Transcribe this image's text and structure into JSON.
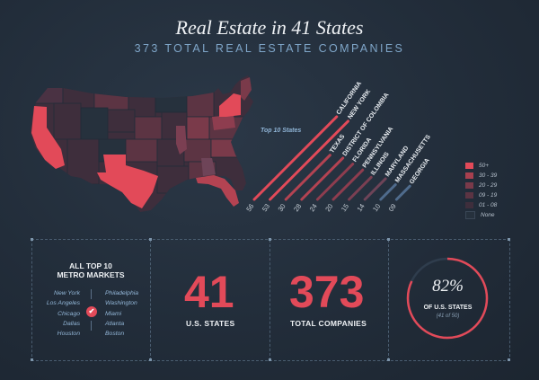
{
  "header": {
    "title": "Real Estate in 41 States",
    "subtitle": "373 TOTAL REAL ESTATE COMPANIES"
  },
  "colors": {
    "accent": "#e24a59",
    "tier_50_plus": "#e24a59",
    "tier_30_39": "#a8404f",
    "tier_20_29": "#7a3a4a",
    "tier_09_19": "#5c3443",
    "tier_01_08": "#3e2e3c",
    "tier_none": "#26313d",
    "blue_bar": "#4f6b8c"
  },
  "map": {
    "icon": "us-map"
  },
  "chart_data": {
    "type": "bar",
    "title": "Top 10 States",
    "categories": [
      "CALIFORNIA",
      "NEW YORK",
      "TEXAS",
      "DISTRICT OF COLOMBIA",
      "FLORIDA",
      "PENNSYLVANIA",
      "ILLINOIS",
      "MARYLAND",
      "MASSACHUSETTS",
      "GEORGIA"
    ],
    "values": [
      56,
      53,
      30,
      28,
      24,
      20,
      15,
      14,
      10,
      9
    ],
    "value_labels": [
      "56",
      "53",
      "30",
      "28",
      "24",
      "20",
      "15",
      "14",
      "10",
      "09"
    ],
    "bar_colors": [
      "#e24a59",
      "#e24a59",
      "#b44352",
      "#b44352",
      "#8e3d4f",
      "#8e3d4f",
      "#7b3f52",
      "#6e4458",
      "#4f6b8c",
      "#4f6b8c"
    ]
  },
  "legend": {
    "items": [
      {
        "label": "50+",
        "color": "#e24a59"
      },
      {
        "label": "30 - 39",
        "color": "#a8404f"
      },
      {
        "label": "20 - 29",
        "color": "#7a3a4a"
      },
      {
        "label": "09 - 19",
        "color": "#5c3443"
      },
      {
        "label": "01 - 08",
        "color": "#3e2e3c"
      },
      {
        "label": "None",
        "color": "#26313d"
      }
    ]
  },
  "metro": {
    "title_line1": "ALL TOP 10",
    "title_line2": "METRO MARKETS",
    "left": [
      "New York",
      "Los Angeles",
      "Chicago",
      "Dallas",
      "Houston"
    ],
    "right": [
      "Philadelphia",
      "Washington",
      "Miami",
      "Atlanta",
      "Boston"
    ],
    "check_icon": "✔"
  },
  "stats": {
    "states_value": "41",
    "states_label": "U.S. STATES",
    "companies_value": "373",
    "companies_label": "TOTAL COMPANIES",
    "percent_value": "82%",
    "percent_fraction": 0.82,
    "percent_label": "OF U.S. STATES",
    "percent_sub": "(41 of 50)"
  }
}
